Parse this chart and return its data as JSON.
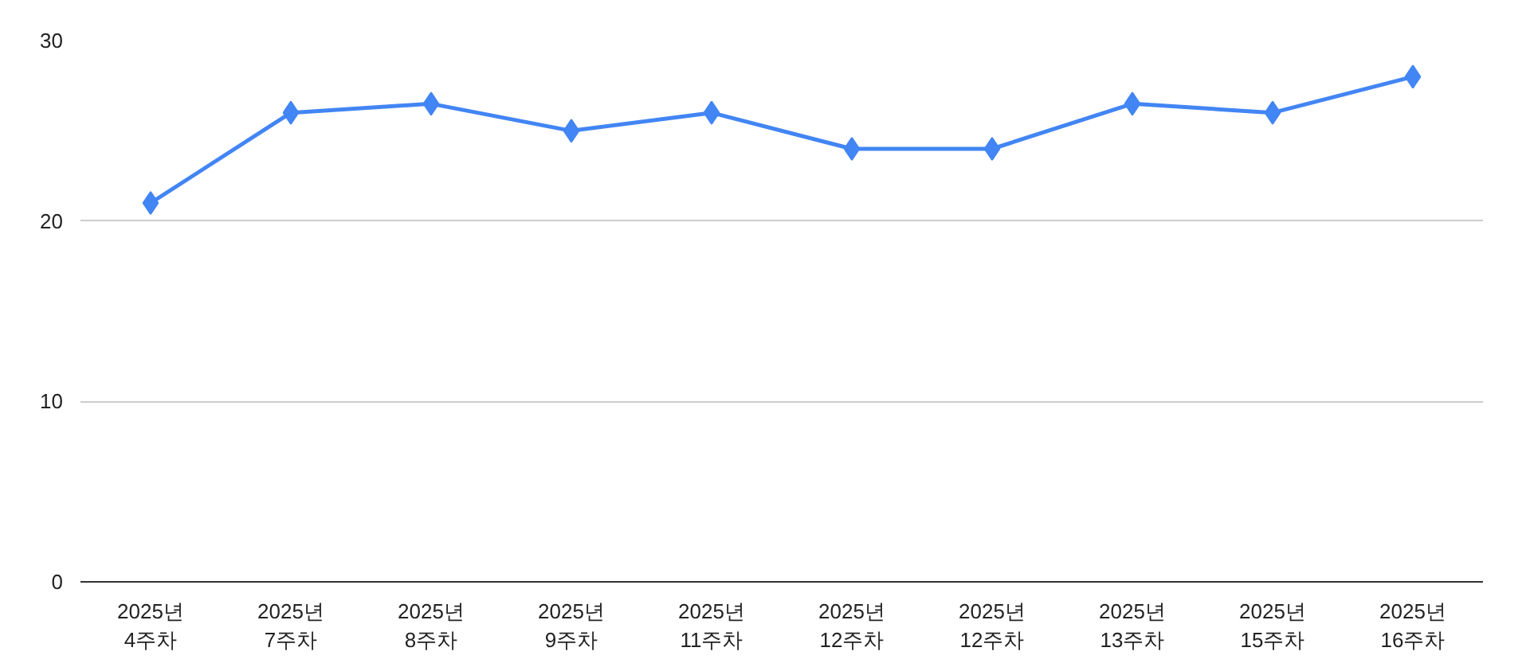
{
  "chart_data": {
    "type": "line",
    "categories": [
      "2025년\n4주차",
      "2025년\n7주차",
      "2025년\n8주차",
      "2025년\n9주차",
      "2025년\n11주차",
      "2025년\n12주차",
      "2025년\n12주차",
      "2025년\n13주차",
      "2025년\n15주차",
      "2025년\n16주차"
    ],
    "series": [
      {
        "color": "#4285f4",
        "values": [
          21,
          26,
          26.5,
          25,
          26,
          24,
          24,
          26.5,
          26,
          28
        ]
      }
    ],
    "ylim": [
      0,
      30
    ],
    "yticks": [
      0,
      10,
      20,
      30
    ],
    "grid": "y",
    "marker": "diamond",
    "line_style": "solid"
  }
}
